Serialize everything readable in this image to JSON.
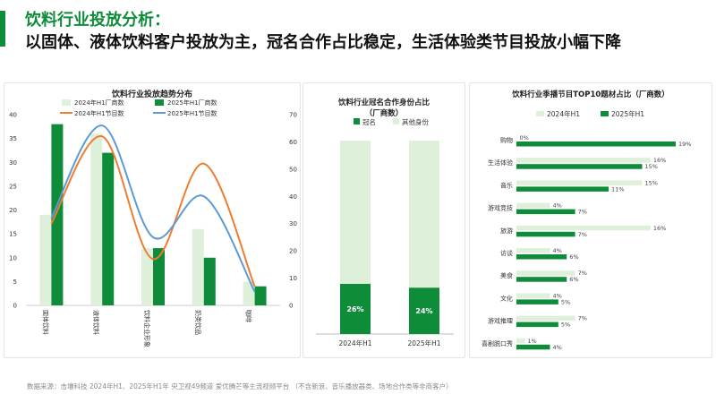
{
  "header": {
    "title": "饮料行业投放分析：",
    "subtitle": "以固体、液体饮料客户投放为主，冠名合作占比稳定，生活体验类节目投放小幅下降"
  },
  "footnote": "数据来源：击壤科技  2024年H1、2025年H1年 央卫视49频道  爱优腾芒等主流视频平台  （不含新浪、音乐播放器类、场地合作类等非商客户）",
  "colors": {
    "dark_green": "#0e8c3a",
    "light_green": "#dff0da",
    "orange": "#ee7d31",
    "blue": "#5b9bd5"
  },
  "chart_data": [
    {
      "type": "bar",
      "title": "饮料行业投放趋势分布",
      "categories": [
        "固体饮料",
        "液体饮料",
        "饮料企业形象",
        "奶类饮品",
        "咖啡"
      ],
      "series": [
        {
          "name": "2024年H1厂商数",
          "values": [
            19,
            36,
            12,
            16,
            5
          ],
          "axis": "left",
          "kind": "bar"
        },
        {
          "name": "2025年H1厂商数",
          "values": [
            38,
            32,
            12,
            10,
            4
          ],
          "axis": "left",
          "kind": "bar"
        },
        {
          "name": "2024年H1节目数",
          "values": [
            30,
            62,
            17,
            52,
            7
          ],
          "axis": "right",
          "kind": "line"
        },
        {
          "name": "2025年H1节目数",
          "values": [
            32,
            66,
            25,
            40,
            5
          ],
          "axis": "right",
          "kind": "line"
        }
      ],
      "yleft_ticks": [
        "0",
        "5",
        "10",
        "15",
        "20",
        "25",
        "30",
        "35",
        "40"
      ],
      "yright_ticks": [
        "0",
        "10",
        "20",
        "30",
        "40",
        "50",
        "60",
        "70"
      ],
      "yleft_lim": [
        0,
        40
      ],
      "yright_lim": [
        0,
        70
      ],
      "legend": "top"
    },
    {
      "type": "bar",
      "title_lines": [
        "饮料行业冠名合作身份占比",
        "（厂商数）"
      ],
      "stacked": true,
      "categories": [
        "2024年H1",
        "2025年H1"
      ],
      "series": [
        {
          "name": "冠名",
          "values": [
            26,
            24
          ]
        },
        {
          "name": "其他身份",
          "values": [
            74,
            76
          ]
        }
      ],
      "labels": [
        "26%",
        "24%"
      ],
      "ylim": [
        0,
        100
      ],
      "legend": "top"
    },
    {
      "type": "bar",
      "orientation": "horizontal",
      "title": "饮料行业季播节目TOP10题材占比（厂商数）",
      "categories": [
        "购物",
        "生活体验",
        "音乐",
        "游戏竞技",
        "旅游",
        "访谈",
        "美食",
        "文化",
        "游戏推理",
        "喜剧脱口秀"
      ],
      "series": [
        {
          "name": "2024年H1",
          "values": [
            0,
            16,
            15,
            4,
            16,
            4,
            7,
            4,
            7,
            1
          ],
          "labels": [
            "0%",
            "16%",
            "15%",
            "4%",
            "16%",
            "4%",
            "7%",
            "4%",
            "7%",
            "1%"
          ]
        },
        {
          "name": "2025年H1",
          "values": [
            19,
            15,
            11,
            7,
            7,
            6,
            6,
            5,
            5,
            4
          ],
          "labels": [
            "19%",
            "15%",
            "11%",
            "7%",
            "7%",
            "6%",
            "6%",
            "5%",
            "5%",
            "4%"
          ]
        }
      ],
      "xlim": [
        0,
        19
      ],
      "legend": "top"
    }
  ]
}
